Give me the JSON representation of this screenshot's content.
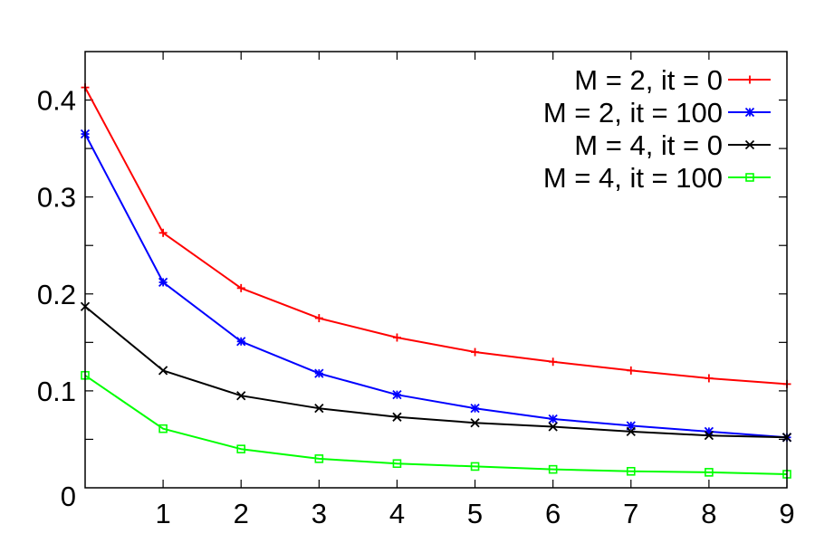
{
  "chart_data": {
    "type": "line",
    "title": "",
    "xlabel": "",
    "ylabel": "",
    "x": [
      0,
      1,
      2,
      3,
      4,
      5,
      6,
      7,
      8,
      9
    ],
    "xlim": [
      0,
      9
    ],
    "ylim": [
      0,
      0.45
    ],
    "x_ticks": [
      1,
      2,
      3,
      4,
      5,
      6,
      7,
      8,
      9
    ],
    "x_tick_labels": [
      "1",
      "2",
      "3",
      "4",
      "5",
      "6",
      "7",
      "8",
      "9"
    ],
    "y_ticks": [
      0,
      0.1,
      0.2,
      0.3,
      0.4
    ],
    "y_tick_labels": [
      "0",
      "0.1",
      "0.2",
      "0.3",
      "0.4"
    ],
    "y_minor_step": 0.05,
    "grid": false,
    "legend_position": "top-right",
    "series": [
      {
        "name": "M = 2, it = 0",
        "color": "#ff0000",
        "marker": "plus",
        "values": [
          0.413,
          0.263,
          0.206,
          0.175,
          0.155,
          0.14,
          0.13,
          0.121,
          0.113,
          0.107
        ]
      },
      {
        "name": "M = 2, it = 100",
        "color": "#0000ff",
        "marker": "star",
        "values": [
          0.365,
          0.212,
          0.151,
          0.118,
          0.096,
          0.082,
          0.071,
          0.064,
          0.058,
          0.052
        ]
      },
      {
        "name": "M = 4, it = 0",
        "color": "#000000",
        "marker": "cross",
        "values": [
          0.187,
          0.121,
          0.095,
          0.082,
          0.073,
          0.067,
          0.063,
          0.058,
          0.054,
          0.052
        ]
      },
      {
        "name": "M = 4, it = 100",
        "color": "#00ff00",
        "marker": "square",
        "values": [
          0.116,
          0.061,
          0.04,
          0.03,
          0.025,
          0.022,
          0.019,
          0.017,
          0.016,
          0.014
        ]
      }
    ]
  }
}
